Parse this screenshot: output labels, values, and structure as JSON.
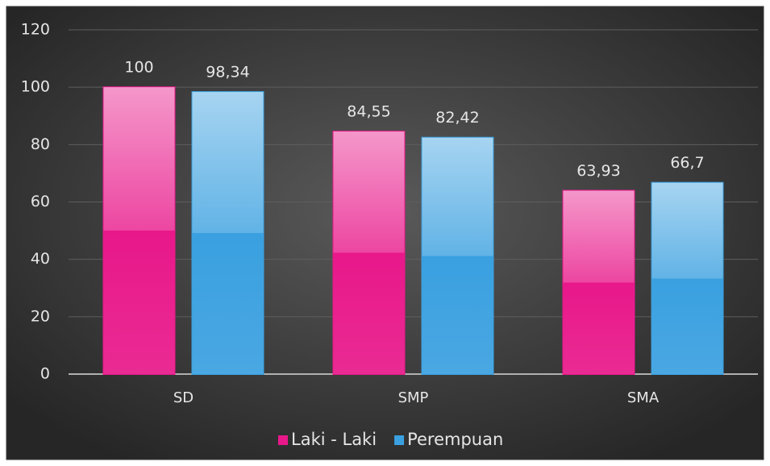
{
  "chart_data": {
    "type": "bar",
    "categories": [
      "SD",
      "SMP",
      "SMA"
    ],
    "series": [
      {
        "name": "Laki - Laki",
        "color": "#e8188a",
        "values": [
          100,
          84.55,
          63.93
        ],
        "value_labels": [
          "100",
          "84,55",
          "63,93"
        ]
      },
      {
        "name": "Perempuan",
        "color": "#3aa0e0",
        "values": [
          98.34,
          82.42,
          66.7
        ],
        "value_labels": [
          "98,34",
          "82,42",
          "66,7"
        ]
      }
    ],
    "ylim": [
      0,
      120
    ],
    "yticks": [
      0,
      20,
      40,
      60,
      80,
      100,
      120
    ],
    "grid": true,
    "legend": "bottom"
  }
}
